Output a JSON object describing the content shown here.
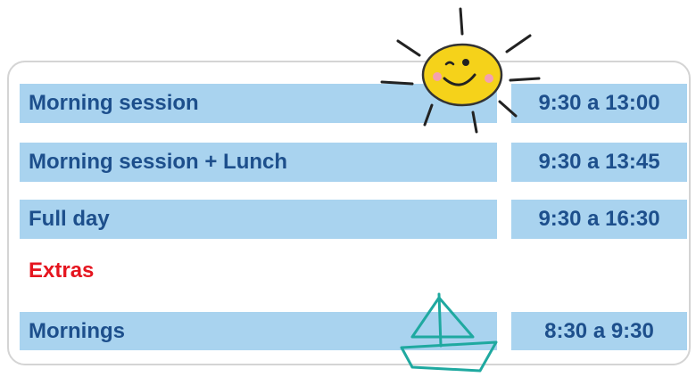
{
  "rows": [
    {
      "label": "Morning session",
      "time": "9:30 a 13:00"
    },
    {
      "label": "Morning session + Lunch",
      "time": "9:30 a 13:45"
    },
    {
      "label": "Full day",
      "time": "9:30 a 16:30"
    }
  ],
  "extras": {
    "title": "Extras",
    "rows": [
      {
        "label": "Mornings",
        "time": "8:30 a 9:30"
      }
    ]
  }
}
